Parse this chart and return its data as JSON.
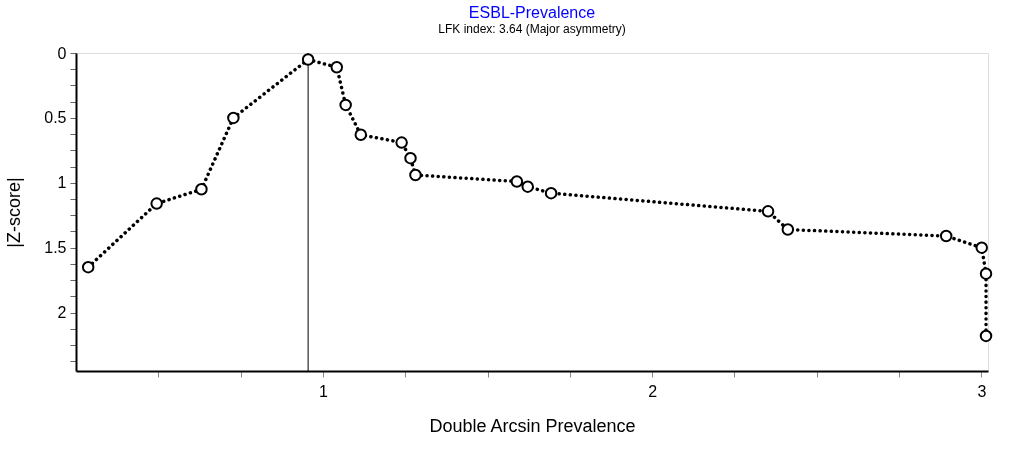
{
  "chart_data": {
    "type": "line",
    "title": "ESBL-Prevalence",
    "subtitle": "LFK index: 3.64 (Major asymmetry)",
    "xlabel": "Double Arcsin Prevalence",
    "ylabel": "|Z-score|",
    "x": [
      0.287,
      0.495,
      0.631,
      0.728,
      0.955,
      1.042,
      1.069,
      1.115,
      1.239,
      1.266,
      1.281,
      1.589,
      1.622,
      1.693,
      2.352,
      2.412,
      2.893,
      3.001,
      3.014,
      3.014
    ],
    "series": [
      {
        "color": "#000000",
        "values": [
          1.65,
          1.16,
          1.05,
          0.5,
          0.05,
          0.11,
          0.4,
          0.63,
          0.69,
          0.81,
          0.94,
          0.99,
          1.03,
          1.08,
          1.22,
          1.36,
          1.41,
          1.5,
          1.7,
          2.18
        ]
      }
    ],
    "xlim": [
      0.25,
      3.02
    ],
    "ylim": [
      2.45,
      0
    ],
    "xticks": [
      {
        "value": 0.5,
        "label": null
      },
      {
        "value": 0.75,
        "label": null
      },
      1,
      {
        "value": 1.25,
        "label": null
      },
      {
        "value": 1.5,
        "label": null
      },
      {
        "value": 1.75,
        "label": null
      },
      2,
      {
        "value": 2.25,
        "label": null
      },
      {
        "value": 2.5,
        "label": null
      },
      {
        "value": 2.75,
        "label": null
      },
      3
    ],
    "yticks": [
      0,
      {
        "value": 0.125,
        "label": null
      },
      {
        "value": 0.25,
        "label": null
      },
      {
        "value": 0.375,
        "label": null
      },
      0.5,
      {
        "value": 0.625,
        "label": null
      },
      {
        "value": 0.75,
        "label": null
      },
      {
        "value": 0.875,
        "label": null
      },
      1,
      {
        "value": 1.125,
        "label": null
      },
      {
        "value": 1.25,
        "label": null
      },
      {
        "value": 1.375,
        "label": null
      },
      1.5,
      {
        "value": 1.625,
        "label": null
      },
      {
        "value": 1.75,
        "label": null
      },
      {
        "value": 1.875,
        "label": null
      },
      2,
      {
        "value": 2.125,
        "label": null
      },
      {
        "value": 2.25,
        "label": null
      },
      {
        "value": 2.375,
        "label": null
      }
    ],
    "ref_lines": [
      {
        "axis": "x",
        "value": 0.955,
        "color": "#000000",
        "line_style": "solid"
      }
    ],
    "marker": "circle",
    "line_style": "dotted",
    "grid": false
  }
}
